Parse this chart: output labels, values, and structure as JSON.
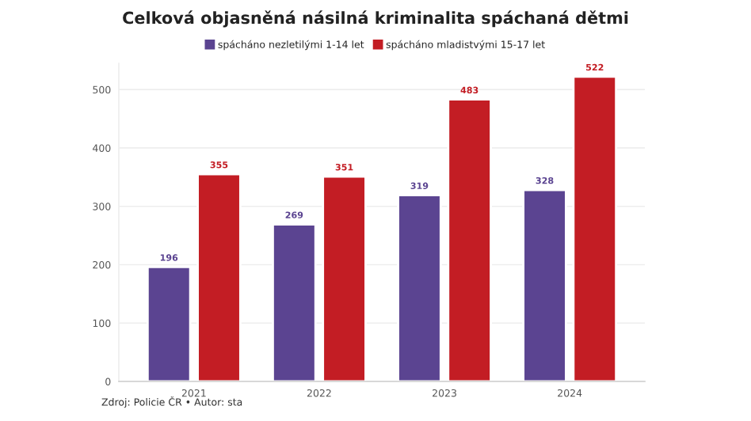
{
  "chart_data": {
    "type": "bar",
    "title": "Celková objasněná násilná kriminalita spáchaná dětmi",
    "categories": [
      "2021",
      "2022",
      "2023",
      "2024"
    ],
    "series": [
      {
        "name": "spácháno nezletilými 1-14 let",
        "color": "#5b4491",
        "values": [
          196,
          269,
          319,
          328
        ]
      },
      {
        "name": "spácháno mladistvými 15-17 let",
        "color": "#c31d24",
        "values": [
          355,
          351,
          483,
          522
        ]
      }
    ],
    "ylim": [
      0,
      545
    ],
    "yticks": [
      0,
      100,
      200,
      300,
      400,
      500
    ],
    "grid": "y",
    "legend": "top",
    "data_labels": true,
    "annotations": [
      "Zdroj: Policie ČR • Autor: sta"
    ]
  }
}
